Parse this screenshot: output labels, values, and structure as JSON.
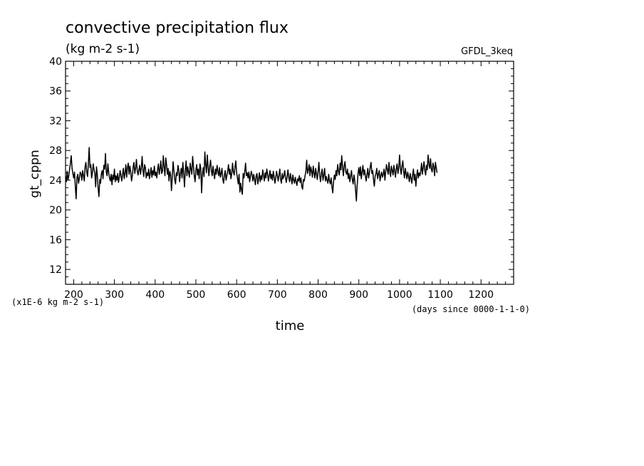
{
  "chart_data": {
    "type": "line",
    "title": "convective precipitation flux",
    "subtitle": "(kg m-2 s-1)",
    "annotation_right": "GFDL_3keq",
    "ylabel": "gt_cppn",
    "xlabel": "time",
    "y_scale_note": "(x1E-6 kg m-2 s-1)",
    "x_units_note": "(days since 0000-1-1-0)",
    "xlim": [
      180,
      1280
    ],
    "ylim": [
      10,
      40
    ],
    "x_ticks": [
      200,
      300,
      400,
      500,
      600,
      700,
      800,
      900,
      1000,
      1100,
      1200
    ],
    "x_tick_labels": [
      "200",
      "300",
      "400",
      "500",
      "600",
      "700",
      "800",
      "900",
      "1000",
      "1100",
      "1200"
    ],
    "y_ticks": [
      12,
      16,
      20,
      24,
      28,
      32,
      36,
      40
    ],
    "y_tick_labels": [
      "12",
      "16",
      "20",
      "24",
      "28",
      "32",
      "36",
      "40"
    ],
    "grid": false,
    "line_color": "#000000",
    "series": [
      {
        "x_start": 180,
        "x_step": 2,
        "values": [
          24.5,
          23.8,
          25.2,
          24.0,
          24.6,
          25.5,
          26.3,
          27.3,
          25.6,
          24.9,
          24.3,
          25.1,
          23.2,
          21.5,
          24.4,
          24.8,
          23.6,
          24.3,
          25.1,
          24.9,
          24.0,
          25.3,
          24.6,
          23.9,
          25.8,
          26.4,
          25.1,
          24.5,
          26.2,
          28.4,
          25.7,
          26.1,
          24.3,
          25.0,
          26.2,
          25.4,
          24.9,
          23.1,
          25.8,
          24.7,
          22.9,
          21.8,
          24.1,
          23.6,
          24.9,
          25.3,
          24.2,
          26.0,
          25.5,
          27.6,
          25.1,
          24.6,
          26.2,
          25.0,
          24.3,
          23.9,
          24.8,
          23.4,
          24.7,
          24.1,
          25.5,
          23.8,
          24.6,
          24.0,
          24.9,
          23.7,
          24.4,
          25.3,
          24.6,
          23.9,
          24.8,
          25.6,
          24.2,
          24.9,
          26.1,
          24.4,
          25.7,
          26.3,
          24.8,
          25.9,
          25.1,
          23.9,
          24.6,
          25.8,
          26.4,
          24.9,
          25.6,
          26.8,
          25.3,
          24.7,
          25.4,
          26.0,
          24.8,
          25.6,
          27.2,
          25.3,
          24.5,
          26.1,
          25.7,
          24.3,
          25.0,
          24.6,
          25.5,
          24.2,
          24.9,
          25.7,
          24.4,
          25.3,
          24.7,
          25.9,
          24.6,
          25.1,
          24.3,
          25.4,
          26.2,
          24.8,
          25.5,
          26.6,
          24.9,
          25.2,
          27.3,
          25.8,
          24.6,
          27.0,
          26.1,
          24.8,
          25.6,
          23.9,
          25.2,
          24.7,
          22.6,
          24.4,
          26.5,
          25.3,
          24.1,
          23.5,
          25.0,
          24.6,
          26.0,
          25.4,
          23.8,
          24.9,
          25.6,
          24.3,
          26.4,
          24.9,
          23.1,
          25.3,
          26.6,
          24.6,
          25.8,
          25.1,
          24.4,
          26.3,
          25.5,
          24.8,
          27.2,
          25.9,
          24.6,
          23.8,
          25.4,
          26.1,
          24.7,
          25.5,
          24.2,
          26.2,
          25.6,
          22.3,
          24.8,
          25.7,
          24.5,
          27.8,
          26.1,
          25.0,
          27.4,
          25.8,
          24.6,
          25.9,
          26.7,
          25.3,
          24.6,
          25.9,
          24.9,
          24.2,
          25.5,
          24.8,
          26.0,
          25.2,
          24.6,
          25.7,
          24.4,
          24.9,
          25.6,
          24.1,
          23.6,
          24.7,
          25.3,
          24.0,
          24.6,
          25.2,
          26.1,
          24.8,
          25.5,
          24.2,
          24.9,
          26.3,
          25.1,
          24.7,
          25.8,
          26.6,
          25.0,
          24.3,
          23.5,
          24.8,
          22.4,
          23.6,
          22.7,
          22.1,
          24.9,
          24.3,
          25.2,
          26.3,
          24.6,
          25.0,
          24.3,
          25.1,
          23.8,
          24.6,
          25.2,
          24.7,
          23.9,
          24.8,
          24.1,
          23.4,
          24.6,
          24.9,
          23.5,
          24.2,
          25.0,
          23.8,
          24.6,
          24.1,
          25.4,
          24.7,
          23.9,
          25.0,
          24.3,
          25.5,
          24.8,
          23.9,
          24.6,
          25.3,
          24.2,
          24.8,
          24.0,
          25.2,
          24.5,
          23.6,
          24.3,
          25.2,
          24.6,
          23.9,
          24.7,
          25.5,
          24.1,
          23.6,
          24.9,
          24.2,
          24.6,
          25.3,
          24.3,
          23.7,
          24.5,
          25.4,
          24.4,
          23.8,
          24.9,
          24.2,
          23.5,
          24.7,
          24.0,
          23.6,
          24.4,
          23.8,
          23.3,
          24.2,
          23.9,
          24.6,
          23.7,
          24.3,
          23.1,
          22.8,
          24.1,
          23.9,
          24.6,
          25.2,
          26.7,
          24.9,
          25.4,
          26.1,
          24.6,
          25.8,
          25.2,
          24.4,
          25.9,
          25.0,
          24.3,
          25.6,
          24.8,
          24.1,
          25.2,
          26.4,
          24.6,
          23.8,
          24.9,
          25.5,
          24.0,
          24.7,
          25.6,
          23.9,
          24.5,
          24.0,
          23.6,
          24.8,
          23.9,
          23.5,
          24.3,
          23.1,
          22.3,
          23.9,
          24.7,
          24.1,
          25.3,
          24.6,
          26.1,
          25.2,
          24.7,
          26.3,
          25.4,
          27.3,
          25.8,
          24.6,
          25.9,
          26.5,
          25.1,
          24.8,
          25.5,
          24.2,
          24.9,
          23.8,
          24.6,
          25.3,
          24.1,
          23.5,
          24.7,
          24.0,
          22.6,
          21.2,
          23.4,
          24.9,
          25.7,
          24.6,
          25.8,
          24.2,
          25.1,
          26.0,
          24.7,
          25.4,
          24.6,
          23.9,
          24.8,
          25.6,
          24.3,
          25.0,
          25.8,
          26.4,
          24.9,
          25.3,
          24.1,
          23.2,
          24.5,
          24.9,
          25.6,
          24.2,
          24.8,
          25.3,
          23.9,
          24.6,
          25.1,
          24.4,
          24.8,
          25.5,
          24.0,
          25.2,
          26.1,
          25.4,
          24.8,
          26.4,
          25.1,
          24.5,
          25.9,
          25.3,
          24.7,
          26.0,
          25.2,
          24.4,
          25.6,
          26.2,
          24.9,
          25.7,
          27.4,
          25.6,
          24.8,
          25.9,
          26.6,
          25.2,
          24.3,
          25.6,
          24.9,
          24.2,
          25.1,
          24.5,
          23.8,
          24.9,
          24.3,
          23.6,
          24.7,
          25.5,
          24.0,
          24.8,
          23.2,
          24.6,
          25.4,
          24.3,
          25.0,
          24.6,
          25.2,
          26.3,
          24.8,
          25.7,
          26.5,
          25.3,
          24.7,
          26.0,
          25.4,
          27.4,
          26.2,
          25.6,
          26.9,
          25.5,
          25.1,
          26.3,
          25.8,
          24.6,
          26.4,
          25.7,
          25.0
        ]
      }
    ]
  }
}
